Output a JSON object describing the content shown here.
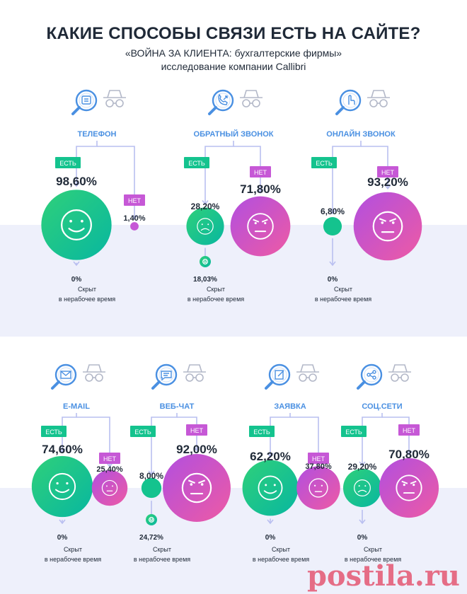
{
  "header": {
    "title": "КАКИЕ СПОСОБЫ СВЯЗИ ЕСТЬ НА САЙТЕ?",
    "subtitle1": "«ВОЙНА ЗА КЛИЕНТА: бухгалтерские фирмы»",
    "subtitle2": "исследование компании Callibri"
  },
  "colors": {
    "green": "#14c38e",
    "purple": "#c658d6",
    "blue": "#4a90e2",
    "line": "#b9bff0",
    "band": "#eef0fb"
  },
  "watermark": "postila.ru",
  "chart_data": {
    "type": "bubble",
    "title": "КАКИЕ СПОСОБЫ СВЯЗИ ЕСТЬ НА САЙТЕ?",
    "labels": {
      "yes": "ЕСТЬ",
      "no": "НЕТ",
      "hidden": "Скрыт",
      "hidden2": "в нерабочее время"
    },
    "channels": [
      {
        "name": "ТЕЛЕФОН",
        "icon": "phone-icon",
        "yes": 98.6,
        "no": 1.4,
        "yes_label": "98,60%",
        "no_label": "1,40%",
        "hidden_label": "0%"
      },
      {
        "name": "ОБРАТНЫЙ ЗВОНОК",
        "icon": "callback-icon",
        "yes": 28.2,
        "no": 71.8,
        "yes_label": "28,20%",
        "no_label": "71,80%",
        "hidden_label": "18,03%"
      },
      {
        "name": "ОНЛАЙН ЗВОНОК",
        "icon": "online-call-icon",
        "yes": 6.8,
        "no": 93.2,
        "yes_label": "6,80%",
        "no_label": "93,20%",
        "hidden_label": "0%"
      },
      {
        "name": "E-MAIL",
        "icon": "email-icon",
        "yes": 74.6,
        "no": 25.4,
        "yes_label": "74,60%",
        "no_label": "25,40%",
        "hidden_label": "0%"
      },
      {
        "name": "ВЕБ-ЧАТ",
        "icon": "webchat-icon",
        "yes": 8.0,
        "no": 92.0,
        "yes_label": "8,00%",
        "no_label": "92,00%",
        "hidden_label": "24,72%"
      },
      {
        "name": "ЗАЯВКА",
        "icon": "request-icon",
        "yes": 62.2,
        "no": 37.8,
        "yes_label": "62,20%",
        "no_label": "37,80%",
        "hidden_label": "0%"
      },
      {
        "name": "СОЦ.СЕТИ",
        "icon": "social-icon",
        "yes": 29.2,
        "no": 70.8,
        "yes_label": "29,20%",
        "no_label": "70,80%",
        "hidden_label": "0%"
      }
    ]
  }
}
